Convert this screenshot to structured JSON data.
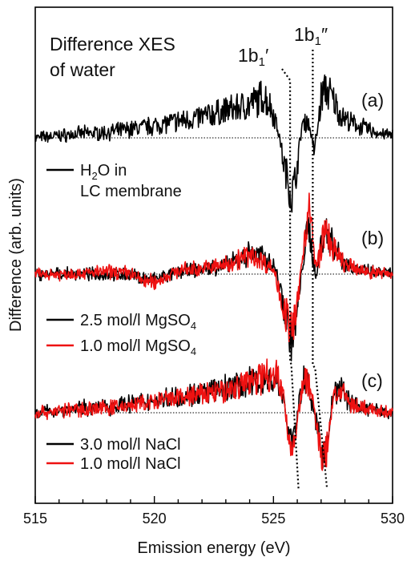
{
  "chart_data": {
    "type": "line",
    "title": "",
    "annotation_lines": [
      "Difference XES",
      "of water"
    ],
    "xlabel": "Emission energy (eV)",
    "ylabel": "Difference (arb. units)",
    "xlim": [
      515,
      530
    ],
    "xticks": [
      "515",
      "520",
      "525",
      "530"
    ],
    "y_ticks_shown": false,
    "grid": false,
    "peak_labels": {
      "p1_main": "1b",
      "p1_sub": "1",
      "p1_suffix": "′",
      "p2_main": "1b",
      "p2_sub": "1",
      "p2_suffix": "″"
    },
    "panels": [
      {
        "label": "(a)",
        "legend": [
          {
            "color": "#000000",
            "text_main": "H",
            "text_sub": "2",
            "text_rest": "O in",
            "text_line2": "LC membrane"
          }
        ],
        "series": [
          {
            "name": "H2O in LC membrane",
            "color": "#000000",
            "x": [
              515.0,
              516.0,
              517.0,
              518.0,
              519.0,
              520.0,
              521.0,
              521.8,
              522.5,
              523.0,
              523.5,
              524.0,
              524.3,
              524.6,
              524.8,
              525.0,
              525.2,
              525.4,
              525.6,
              525.75,
              525.9,
              526.05,
              526.2,
              526.4,
              526.55,
              526.7,
              526.85,
              527.0,
              527.15,
              527.3,
              527.5,
              527.8,
              528.2,
              528.7,
              529.3,
              530.0
            ],
            "y": [
              0.0,
              0.05,
              0.1,
              0.12,
              0.2,
              0.28,
              0.38,
              0.45,
              0.55,
              0.62,
              0.68,
              0.75,
              0.85,
              0.95,
              0.8,
              0.55,
              0.2,
              -0.5,
              -0.95,
              -1.35,
              -1.0,
              -0.4,
              0.3,
              0.4,
              0.2,
              -0.3,
              0.2,
              0.9,
              1.1,
              1.05,
              0.85,
              0.55,
              0.35,
              0.25,
              0.12,
              0.05
            ]
          }
        ]
      },
      {
        "label": "(b)",
        "legend": [
          {
            "color": "#000000",
            "text_main": "2.5 mol/l MgSO",
            "text_sub": "4"
          },
          {
            "color": "#ee1111",
            "text_main": "1.0 mol/l MgSO",
            "text_sub": "4"
          }
        ],
        "series": [
          {
            "name": "2.5 mol/l MgSO4",
            "color": "#000000",
            "x": [
              515.0,
              516.0,
              517.0,
              518.0,
              519.0,
              519.5,
              520.0,
              520.5,
              521.0,
              522.0,
              523.0,
              523.5,
              524.0,
              524.5,
              525.0,
              525.2,
              525.4,
              525.6,
              525.75,
              525.9,
              526.05,
              526.2,
              526.35,
              526.5,
              526.65,
              526.8,
              527.0,
              527.15,
              527.3,
              527.6,
              528.0,
              528.5,
              529.0,
              530.0
            ],
            "y": [
              0.0,
              0.0,
              0.0,
              0.0,
              -0.02,
              -0.08,
              -0.12,
              -0.05,
              0.05,
              0.1,
              0.18,
              0.3,
              0.45,
              0.38,
              0.2,
              -0.1,
              -0.6,
              -1.05,
              -1.45,
              -1.2,
              -0.6,
              0.1,
              0.7,
              0.95,
              0.4,
              -0.1,
              0.7,
              0.95,
              0.85,
              0.55,
              0.25,
              0.1,
              0.05,
              0.0
            ]
          },
          {
            "name": "1.0 mol/l MgSO4",
            "color": "#ee1111",
            "x": [
              515.0,
              516.0,
              517.0,
              518.0,
              519.0,
              519.5,
              520.0,
              520.5,
              521.0,
              522.0,
              523.0,
              523.5,
              524.0,
              524.5,
              525.0,
              525.2,
              525.4,
              525.6,
              525.75,
              525.9,
              526.05,
              526.2,
              526.35,
              526.5,
              526.65,
              526.8,
              527.0,
              527.15,
              527.3,
              527.6,
              528.0,
              528.5,
              529.0,
              530.0
            ],
            "y": [
              0.0,
              0.0,
              0.02,
              0.05,
              0.03,
              -0.15,
              -0.18,
              -0.05,
              0.08,
              0.12,
              0.2,
              0.32,
              0.4,
              0.3,
              0.1,
              -0.25,
              -0.7,
              -1.0,
              -1.2,
              -1.0,
              -0.5,
              0.3,
              1.0,
              1.45,
              0.7,
              0.1,
              0.6,
              0.9,
              0.8,
              0.45,
              0.2,
              0.1,
              0.05,
              0.0
            ]
          }
        ]
      },
      {
        "label": "(c)",
        "legend": [
          {
            "color": "#000000",
            "text_main": "3.0 mol/l NaCl"
          },
          {
            "color": "#ee1111",
            "text_main": "1.0 mol/l NaCl"
          }
        ],
        "series": [
          {
            "name": "3.0 mol/l NaCl",
            "color": "#000000",
            "x": [
              515.0,
              516.0,
              517.0,
              518.0,
              519.0,
              520.0,
              521.0,
              522.0,
              523.0,
              523.5,
              524.0,
              524.5,
              525.0,
              525.2,
              525.4,
              525.6,
              525.8,
              526.0,
              526.15,
              526.3,
              526.5,
              526.7,
              526.9,
              527.05,
              527.2,
              527.35,
              527.5,
              527.8,
              528.2,
              528.7,
              529.3,
              530.0
            ],
            "y": [
              0.0,
              0.05,
              0.1,
              0.12,
              0.2,
              0.25,
              0.35,
              0.4,
              0.5,
              0.55,
              0.62,
              0.68,
              0.72,
              0.6,
              0.3,
              -0.3,
              -0.6,
              -0.1,
              0.45,
              0.8,
              0.5,
              -0.05,
              -0.4,
              -0.8,
              -0.85,
              -0.3,
              0.4,
              0.5,
              0.25,
              0.12,
              0.05,
              0.0
            ]
          },
          {
            "name": "1.0 mol/l NaCl",
            "color": "#ee1111",
            "x": [
              515.0,
              516.0,
              517.0,
              518.0,
              519.0,
              520.0,
              521.0,
              522.0,
              523.0,
              523.5,
              524.0,
              524.5,
              525.0,
              525.2,
              525.4,
              525.6,
              525.8,
              526.0,
              526.15,
              526.3,
              526.5,
              526.7,
              526.9,
              527.05,
              527.2,
              527.35,
              527.5,
              527.8,
              528.2,
              528.7,
              529.3,
              530.0
            ],
            "y": [
              0.0,
              0.04,
              0.08,
              0.1,
              0.15,
              0.22,
              0.3,
              0.38,
              0.45,
              0.55,
              0.65,
              0.75,
              0.85,
              0.7,
              0.4,
              -0.4,
              -0.75,
              -0.2,
              0.4,
              0.7,
              0.55,
              0.1,
              -0.55,
              -0.95,
              -0.9,
              -0.35,
              0.35,
              0.45,
              0.2,
              0.1,
              0.04,
              0.0
            ]
          }
        ]
      }
    ]
  }
}
